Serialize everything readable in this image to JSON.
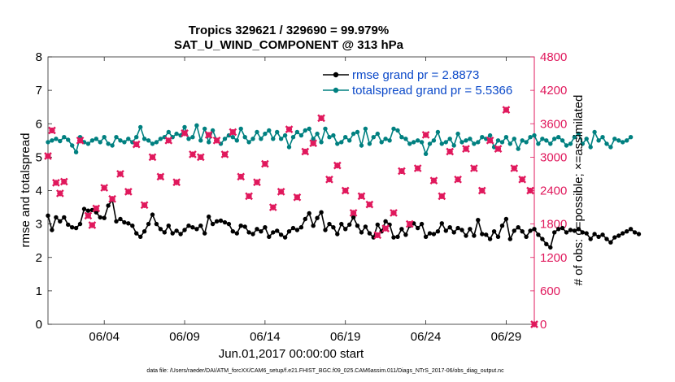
{
  "chart_data": {
    "type": "line",
    "title": "Tropics 329621 / 329690 = 99.979%",
    "subtitle": "SAT_U_WIND_COMPONENT @ 313 hPa",
    "xlabel": "Jun.01,2017 00:00:00 start",
    "ylabel": "rmse and totalspread",
    "ylabel_right": "# of obs: o=possible; ×=assimilated",
    "footnote": "data file: /Users/raeder/DAI/ATM_forcXX/CAM6_setup/f.e21.FHIST_BGC.f09_025.CAM6assim.011/Diags_NTrS_2017-06/obs_diag_output.nc",
    "x_range": [
      0.5,
      30.75
    ],
    "x_ticks": [
      4,
      9,
      14,
      19,
      24,
      29
    ],
    "x_tick_labels": [
      "06/04",
      "06/09",
      "06/14",
      "06/19",
      "06/24",
      "06/29"
    ],
    "y_range": [
      0,
      8
    ],
    "y_ticks": [
      0,
      1,
      2,
      3,
      4,
      5,
      6,
      7,
      8
    ],
    "y_tick_labels": [
      "0",
      "1",
      "2",
      "3",
      "4",
      "5",
      "6",
      "7",
      "8"
    ],
    "y_right_range": [
      0,
      4800
    ],
    "y_right_ticks": [
      0,
      600,
      1200,
      1800,
      2400,
      3000,
      3600,
      4200,
      4800
    ],
    "y_right_tick_labels": [
      "0",
      "600",
      "1200",
      "1800",
      "2400",
      "3000",
      "3600",
      "4200",
      "4800"
    ],
    "legend_position": "top-right",
    "colors": {
      "rmse": "#000000",
      "spread": "#008080",
      "obs": "#e0185c",
      "legend_text": "#0b49c9",
      "right_axis": "#e0185c"
    },
    "series": [
      {
        "name": "rmse grand pr = 2.8873",
        "key": "rmse",
        "x_start": 0.5,
        "x_step": 0.25,
        "values": [
          3.25,
          2.82,
          3.2,
          3.08,
          3.2,
          2.98,
          2.9,
          2.88,
          3.0,
          3.45,
          3.4,
          3.42,
          3.35,
          3.2,
          3.18,
          3.55,
          3.72,
          3.08,
          3.15,
          3.05,
          3.02,
          2.95,
          2.72,
          2.62,
          2.78,
          3.0,
          3.28,
          3.0,
          2.85,
          2.75,
          2.95,
          2.72,
          2.8,
          2.7,
          2.82,
          2.95,
          2.9,
          2.85,
          2.95,
          2.72,
          3.22,
          3.0,
          3.08,
          3.1,
          3.05,
          3.0,
          2.78,
          2.72,
          2.95,
          2.92,
          2.75,
          2.7,
          2.85,
          2.78,
          2.9,
          2.62,
          2.75,
          2.8,
          2.68,
          2.6,
          2.78,
          2.88,
          2.82,
          2.9,
          3.15,
          3.32,
          2.95,
          3.18,
          3.35,
          2.82,
          3.0,
          2.9,
          2.7,
          3.0,
          2.85,
          2.98,
          3.2,
          2.95,
          2.75,
          2.92,
          2.72,
          2.6,
          2.98,
          2.78,
          3.08,
          2.98,
          2.6,
          2.62,
          2.85,
          2.68,
          2.95,
          3.02,
          2.88,
          3.0,
          2.62,
          2.72,
          2.7,
          2.78,
          3.02,
          2.8,
          2.9,
          2.75,
          2.88,
          2.82,
          2.65,
          2.85,
          2.65,
          3.12,
          2.7,
          2.68,
          2.55,
          2.78,
          2.62,
          2.95,
          3.15,
          2.55,
          2.8,
          2.9,
          2.78,
          2.62,
          2.8,
          2.85,
          2.68,
          2.55,
          2.4,
          2.3,
          2.75,
          2.85,
          2.88,
          2.75,
          2.82,
          2.8,
          2.85,
          2.75,
          2.72,
          2.55,
          2.7,
          2.62,
          2.68,
          2.55,
          2.45,
          2.6,
          2.65,
          2.72,
          2.78,
          2.85,
          2.75,
          2.7
        ]
      },
      {
        "name": "totalspread grand pr = 5.5366",
        "key": "spread",
        "x_start": 0.5,
        "x_step": 0.25,
        "values": [
          5.45,
          5.5,
          5.55,
          5.48,
          5.6,
          5.52,
          5.35,
          5.15,
          5.6,
          5.45,
          5.4,
          5.5,
          5.55,
          5.45,
          5.6,
          5.4,
          5.35,
          5.6,
          5.5,
          5.45,
          5.55,
          5.45,
          5.6,
          5.9,
          5.55,
          5.5,
          5.4,
          5.45,
          5.55,
          5.6,
          5.75,
          5.6,
          5.7,
          5.65,
          5.9,
          5.55,
          5.6,
          5.95,
          5.5,
          5.85,
          5.45,
          5.8,
          5.5,
          5.4,
          5.55,
          5.65,
          5.6,
          5.5,
          5.85,
          5.6,
          5.45,
          5.55,
          5.75,
          5.55,
          5.7,
          5.8,
          5.55,
          5.75,
          5.55,
          5.65,
          5.3,
          5.6,
          5.75,
          5.65,
          5.8,
          5.85,
          5.55,
          5.7,
          5.45,
          5.85,
          5.6,
          5.65,
          5.4,
          5.45,
          5.6,
          5.5,
          5.7,
          5.75,
          5.35,
          5.85,
          5.4,
          5.6,
          5.7,
          5.45,
          5.55,
          5.5,
          5.85,
          5.8,
          5.6,
          5.55,
          5.4,
          5.45,
          5.5,
          5.45,
          5.1,
          5.4,
          5.5,
          5.75,
          5.4,
          5.45,
          5.55,
          5.35,
          5.7,
          5.45,
          5.5,
          5.55,
          5.4,
          5.45,
          5.6,
          5.55,
          5.65,
          5.3,
          5.5,
          5.45,
          5.6,
          5.4,
          5.55,
          5.25,
          5.5,
          5.45,
          5.6,
          5.65,
          5.4,
          5.55,
          5.5,
          5.4,
          5.55,
          5.6,
          5.5,
          5.35,
          5.4,
          5.6,
          5.7,
          5.4,
          5.55,
          5.3,
          5.75,
          5.5,
          5.6,
          5.4,
          5.3,
          5.55,
          5.5,
          5.45,
          5.5,
          5.6
        ]
      },
      {
        "name": "obs assimilated",
        "key": "obs",
        "axis": "right",
        "points": [
          [
            0.5,
            3020
          ],
          [
            0.75,
            3480
          ],
          [
            1.0,
            2540
          ],
          [
            1.25,
            2350
          ],
          [
            1.5,
            2560
          ],
          [
            2.5,
            3300
          ],
          [
            3.0,
            1950
          ],
          [
            3.25,
            1780
          ],
          [
            3.5,
            2080
          ],
          [
            4.0,
            2450
          ],
          [
            4.5,
            2250
          ],
          [
            5.0,
            2700
          ],
          [
            5.5,
            2380
          ],
          [
            6.0,
            3230
          ],
          [
            6.5,
            2140
          ],
          [
            7.0,
            3000
          ],
          [
            7.5,
            2650
          ],
          [
            8.0,
            3300
          ],
          [
            8.5,
            2550
          ],
          [
            9.0,
            3430
          ],
          [
            9.5,
            3050
          ],
          [
            10.0,
            3000
          ],
          [
            10.5,
            3400
          ],
          [
            11.0,
            3300
          ],
          [
            11.5,
            3050
          ],
          [
            12.0,
            3450
          ],
          [
            12.5,
            2650
          ],
          [
            13.0,
            2300
          ],
          [
            13.5,
            2550
          ],
          [
            14.0,
            2880
          ],
          [
            14.5,
            2100
          ],
          [
            15.0,
            2380
          ],
          [
            15.5,
            3500
          ],
          [
            16.0,
            2280
          ],
          [
            16.5,
            3100
          ],
          [
            17.0,
            3250
          ],
          [
            17.5,
            3700
          ],
          [
            18.0,
            2600
          ],
          [
            18.5,
            2850
          ],
          [
            19.0,
            2400
          ],
          [
            19.5,
            2000
          ],
          [
            20.0,
            2300
          ],
          [
            20.5,
            2150
          ],
          [
            21.0,
            1600
          ],
          [
            21.5,
            1720
          ],
          [
            22.0,
            2000
          ],
          [
            22.5,
            2750
          ],
          [
            23.0,
            1800
          ],
          [
            23.5,
            2800
          ],
          [
            24.0,
            3400
          ],
          [
            24.5,
            2580
          ],
          [
            25.0,
            2300
          ],
          [
            25.5,
            3100
          ],
          [
            26.0,
            2600
          ],
          [
            26.5,
            3150
          ],
          [
            27.0,
            2800
          ],
          [
            27.5,
            2400
          ],
          [
            28.0,
            3300
          ],
          [
            28.5,
            3150
          ],
          [
            29.0,
            3850
          ],
          [
            29.5,
            2800
          ],
          [
            30.0,
            2600
          ],
          [
            30.5,
            2400
          ],
          [
            30.75,
            0
          ]
        ]
      }
    ],
    "legend": [
      {
        "series": "rmse",
        "label": "rmse grand pr = 2.8873"
      },
      {
        "series": "spread",
        "label": "totalspread grand pr = 5.5366"
      }
    ]
  }
}
